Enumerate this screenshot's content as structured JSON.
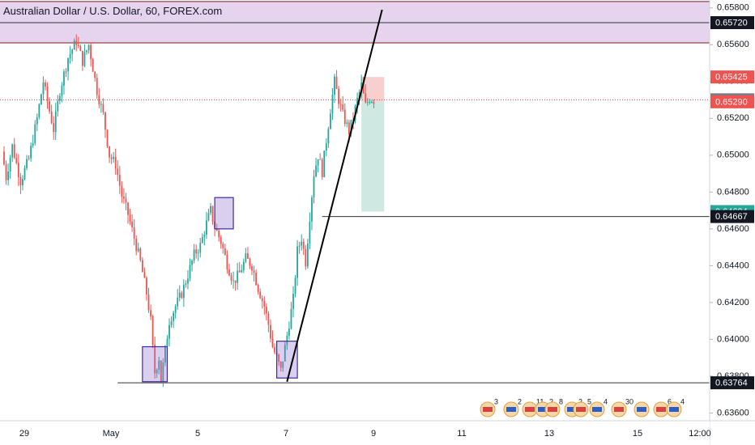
{
  "chart_data": {
    "type": "candlestick",
    "title": "Australian Dollar / U.S. Dollar, 60, FOREX.com",
    "x_ticks": [
      "29",
      "May",
      "5",
      "7",
      "9",
      "11",
      "13",
      "15",
      "12:00"
    ],
    "y_ticks": [
      0.636,
      0.638,
      0.64,
      0.642,
      0.644,
      0.646,
      0.648,
      0.65,
      0.652,
      0.654,
      0.656,
      0.658
    ],
    "y_tick_labels": [
      "0.63600",
      "0.63800",
      "0.64000",
      "0.64200",
      "0.64400",
      "0.64600",
      "0.64800",
      "0.65000",
      "0.65200",
      "0.65400",
      "0.65600",
      "0.65800"
    ],
    "ylim": [
      0.63558,
      0.65843
    ],
    "price_labels": [
      {
        "text": "0.65720",
        "value": 0.6572,
        "style": "dark"
      },
      {
        "text": "0.65425",
        "value": 0.65425,
        "style": "red"
      },
      {
        "text": "0.65301",
        "value": 0.65301,
        "style": "gray"
      },
      {
        "text": "0.65290",
        "value": 0.6529,
        "style": "red"
      },
      {
        "text": "0.64694",
        "value": 0.64694,
        "style": "green"
      },
      {
        "text": "0.64667",
        "value": 0.64667,
        "style": "dark"
      },
      {
        "text": "0.63764",
        "value": 0.63764,
        "style": "dark"
      }
    ],
    "resistance_zone": {
      "low": 0.6561,
      "high": 0.65835,
      "mid_line": 0.6572
    },
    "support_line": 0.63764,
    "target_line": 0.64667,
    "current_price": 0.65301,
    "position": {
      "entry": 0.6529,
      "stop": 0.65425,
      "target": 0.64694
    },
    "trendline": {
      "from": 0.6377,
      "to": 0.6579
    },
    "path": [
      [
        0,
        0.6502
      ],
      [
        2,
        0.6488
      ],
      [
        5,
        0.6505
      ],
      [
        9,
        0.6486
      ],
      [
        13,
        0.6498
      ],
      [
        17,
        0.652
      ],
      [
        20,
        0.654
      ],
      [
        23,
        0.6524
      ],
      [
        25,
        0.6514
      ],
      [
        28,
        0.6535
      ],
      [
        32,
        0.6553
      ],
      [
        36,
        0.6562
      ],
      [
        39,
        0.6551
      ],
      [
        42,
        0.656
      ],
      [
        46,
        0.6535
      ],
      [
        49,
        0.6522
      ],
      [
        52,
        0.65
      ],
      [
        55,
        0.6495
      ],
      [
        58,
        0.6478
      ],
      [
        61,
        0.6468
      ],
      [
        64,
        0.6455
      ],
      [
        67,
        0.6442
      ],
      [
        70,
        0.6425
      ],
      [
        72,
        0.641
      ],
      [
        73,
        0.6395
      ],
      [
        74,
        0.6382
      ],
      [
        76,
        0.639
      ],
      [
        77,
        0.6378
      ],
      [
        79,
        0.6394
      ],
      [
        81,
        0.641
      ],
      [
        84,
        0.6418
      ],
      [
        87,
        0.6425
      ],
      [
        90,
        0.6435
      ],
      [
        93,
        0.6446
      ],
      [
        96,
        0.6451
      ],
      [
        99,
        0.6463
      ],
      [
        101,
        0.647
      ],
      [
        103,
        0.6461
      ],
      [
        106,
        0.6453
      ],
      [
        109,
        0.6441
      ],
      [
        112,
        0.6431
      ],
      [
        115,
        0.6436
      ],
      [
        118,
        0.6444
      ],
      [
        121,
        0.644
      ],
      [
        124,
        0.6428
      ],
      [
        127,
        0.6418
      ],
      [
        129,
        0.6408
      ],
      [
        131,
        0.6396
      ],
      [
        133,
        0.639
      ],
      [
        135,
        0.6383
      ],
      [
        138,
        0.6402
      ],
      [
        141,
        0.6422
      ],
      [
        143,
        0.6448
      ],
      [
        145,
        0.6455
      ],
      [
        147,
        0.6442
      ],
      [
        149,
        0.6467
      ],
      [
        151,
        0.649
      ],
      [
        153,
        0.65
      ],
      [
        155,
        0.6491
      ],
      [
        157,
        0.6508
      ],
      [
        159,
        0.6525
      ],
      [
        161,
        0.654
      ],
      [
        163,
        0.653
      ],
      [
        165,
        0.6522
      ],
      [
        168,
        0.6513
      ],
      [
        170,
        0.652
      ],
      [
        172,
        0.653
      ],
      [
        174,
        0.6538
      ],
      [
        176,
        0.6527
      ],
      [
        178,
        0.6531
      ],
      [
        180,
        0.653
      ]
    ]
  }
}
